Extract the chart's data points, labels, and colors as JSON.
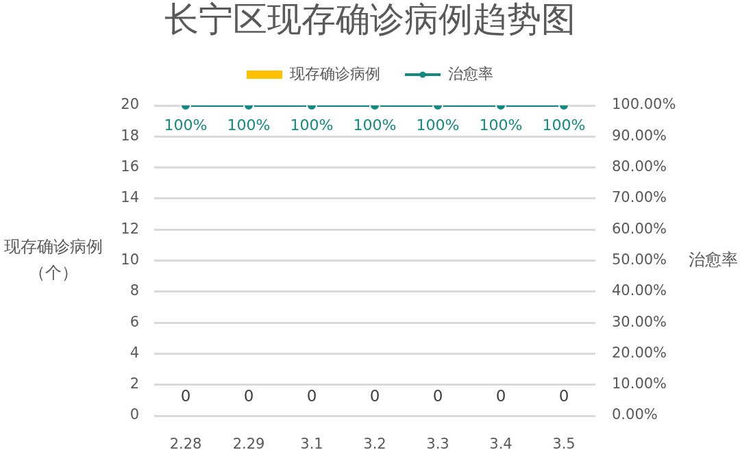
{
  "chart_data": {
    "type": "bar",
    "title": "长宁区现存确诊病例趋势图",
    "ylabel": "现存确诊病例（个）",
    "y2label": "治愈率",
    "categories": [
      "2.28",
      "2.29",
      "3.1",
      "3.2",
      "3.3",
      "3.4",
      "3.5"
    ],
    "series": [
      {
        "name": "现存确诊病例",
        "color": "#ffc000",
        "values": [
          0,
          0,
          0,
          0,
          0,
          0,
          0
        ],
        "value_labels": [
          "0",
          "0",
          "0",
          "0",
          "0",
          "0",
          "0"
        ]
      },
      {
        "name": "治愈率",
        "type": "line",
        "axis": "y2",
        "color": "#138a80",
        "values": [
          100,
          100,
          100,
          100,
          100,
          100,
          100
        ],
        "value_labels": [
          "100%",
          "100%",
          "100%",
          "100%",
          "100%",
          "100%",
          "100%"
        ]
      }
    ],
    "ylim": [
      0,
      20
    ],
    "yticks": [
      0,
      2,
      4,
      6,
      8,
      10,
      12,
      14,
      16,
      18,
      20
    ],
    "y2lim": [
      0,
      100
    ],
    "y2ticks": [
      {
        "value": 0,
        "label": "0.00%"
      },
      {
        "value": 10,
        "label": "10.00%"
      },
      {
        "value": 20,
        "label": "20.00%"
      },
      {
        "value": 30,
        "label": "30.00%"
      },
      {
        "value": 40,
        "label": "40.00%"
      },
      {
        "value": 50,
        "label": "50.00%"
      },
      {
        "value": 60,
        "label": "60.00%"
      },
      {
        "value": 70,
        "label": "70.00%"
      },
      {
        "value": 80,
        "label": "80.00%"
      },
      {
        "value": 90,
        "label": "90.00%"
      },
      {
        "value": 100,
        "label": "100.00%"
      }
    ],
    "grid": "y",
    "legend": "top",
    "marker": "circle",
    "line_style": "solid"
  }
}
